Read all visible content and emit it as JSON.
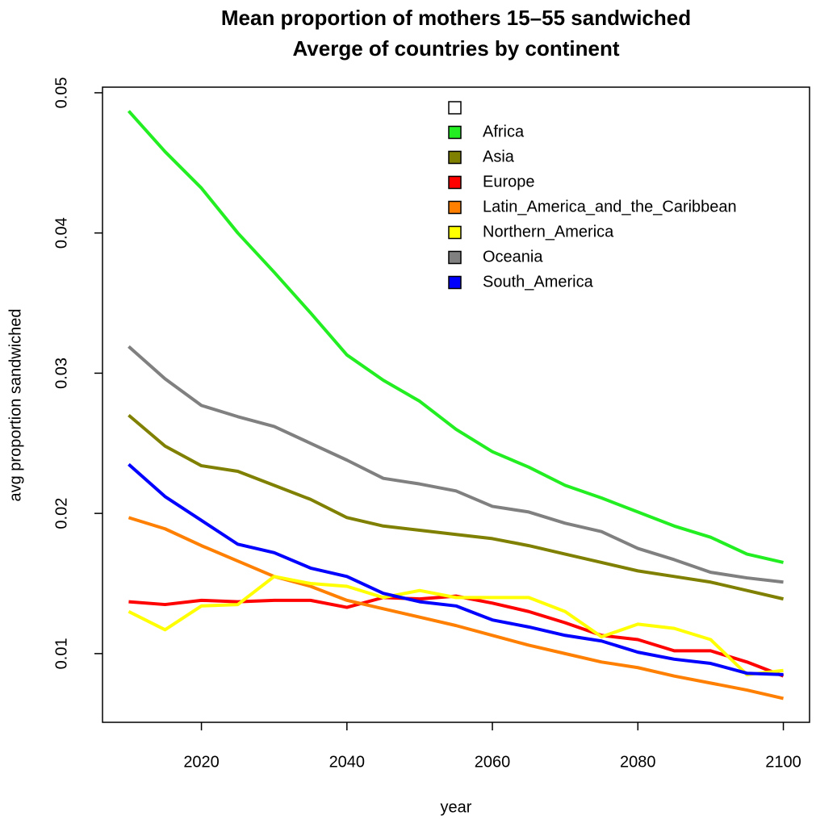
{
  "chart_data": {
    "type": "line",
    "title": "Mean proportion of mothers 15–55 sandwiched",
    "subtitle": "Averge of countries by continent",
    "x_label": "year",
    "y_label": "avg proportion sandwiched",
    "x": [
      2010,
      2015,
      2020,
      2025,
      2030,
      2035,
      2040,
      2045,
      2050,
      2055,
      2060,
      2065,
      2070,
      2075,
      2080,
      2085,
      2090,
      2095,
      2100
    ],
    "xlim": [
      2006.4,
      2103.6
    ],
    "xticks": [
      2020,
      2040,
      2060,
      2080,
      2100
    ],
    "ylim": [
      0.0051,
      0.0504
    ],
    "yticks": [
      0.01,
      0.02,
      0.03,
      0.04,
      0.05
    ],
    "series": [
      {
        "name": "Africa",
        "color": "#22ee22",
        "values": [
          0.0487,
          0.0458,
          0.0432,
          0.04,
          0.0372,
          0.0343,
          0.0313,
          0.0295,
          0.028,
          0.026,
          0.0244,
          0.0233,
          0.022,
          0.0211,
          0.0201,
          0.0191,
          0.0183,
          0.0171,
          0.0165
        ]
      },
      {
        "name": "Asia",
        "color": "#808000",
        "values": [
          0.027,
          0.0248,
          0.0234,
          0.023,
          0.022,
          0.021,
          0.0197,
          0.0191,
          0.0188,
          0.0185,
          0.0182,
          0.0177,
          0.0171,
          0.0165,
          0.0159,
          0.0155,
          0.0151,
          0.0145,
          0.0139
        ]
      },
      {
        "name": "Europe",
        "color": "#ff0000",
        "values": [
          0.0137,
          0.0135,
          0.0138,
          0.0137,
          0.0138,
          0.0138,
          0.0133,
          0.014,
          0.0139,
          0.0141,
          0.0136,
          0.013,
          0.0122,
          0.0113,
          0.011,
          0.0102,
          0.0102,
          0.0094,
          0.0084
        ]
      },
      {
        "name": "Latin_America_and_the_Caribbean",
        "color": "#ff8000",
        "values": [
          0.0197,
          0.0189,
          0.0177,
          0.0166,
          0.0155,
          0.0148,
          0.0138,
          0.0132,
          0.0126,
          0.012,
          0.0113,
          0.0106,
          0.01,
          0.0094,
          0.009,
          0.0084,
          0.0079,
          0.0074,
          0.0068
        ]
      },
      {
        "name": "Northern_America",
        "color": "#ffff00",
        "values": [
          0.013,
          0.0117,
          0.0134,
          0.0135,
          0.0155,
          0.015,
          0.0148,
          0.014,
          0.0145,
          0.014,
          0.014,
          0.014,
          0.013,
          0.0112,
          0.0121,
          0.0118,
          0.011,
          0.0085,
          0.0088
        ]
      },
      {
        "name": "Oceania",
        "color": "#808080",
        "values": [
          0.0319,
          0.0296,
          0.0277,
          0.0269,
          0.0262,
          0.025,
          0.0238,
          0.0225,
          0.0221,
          0.0216,
          0.0205,
          0.0201,
          0.0193,
          0.0187,
          0.0175,
          0.0167,
          0.0158,
          0.0154,
          0.0151
        ]
      },
      {
        "name": "South_America",
        "color": "#0000ff",
        "values": [
          0.0235,
          0.0212,
          0.0195,
          0.0178,
          0.0172,
          0.0161,
          0.0155,
          0.0143,
          0.0137,
          0.0134,
          0.0124,
          0.0119,
          0.0113,
          0.0109,
          0.0101,
          0.0096,
          0.0093,
          0.0086,
          0.0085
        ]
      }
    ]
  }
}
